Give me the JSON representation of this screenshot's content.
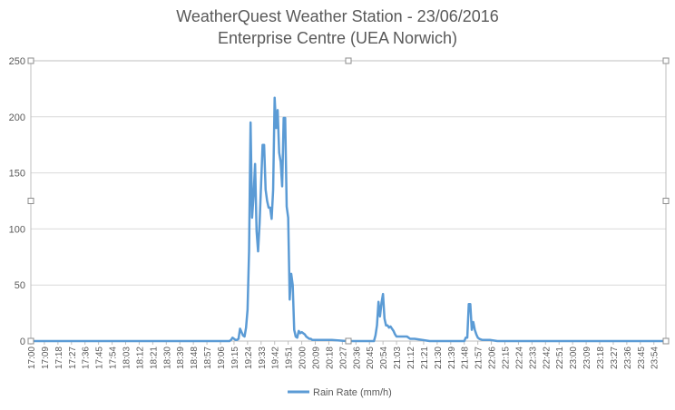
{
  "chart_data": {
    "type": "line",
    "title": "WeatherQuest Weather Station - 23/06/2016",
    "subtitle": "Enterprise Centre (UEA Norwich)",
    "xlabel": "",
    "ylabel": "",
    "ylim": [
      0,
      250
    ],
    "yticks": [
      0,
      50,
      100,
      150,
      200,
      250
    ],
    "grid": true,
    "legend_position": "bottom",
    "x_tick_labels": [
      "17:00",
      "17:09",
      "17:18",
      "17:27",
      "17:36",
      "17:45",
      "17:54",
      "18:03",
      "18:12",
      "18:21",
      "18:30",
      "18:39",
      "18:48",
      "18:57",
      "19:06",
      "19:15",
      "19:24",
      "19:33",
      "19:42",
      "19:51",
      "20:00",
      "20:09",
      "20:18",
      "20:27",
      "20:36",
      "20:45",
      "20:54",
      "21:03",
      "21:12",
      "21:21",
      "21:30",
      "21:39",
      "21:48",
      "21:57",
      "22:06",
      "22:15",
      "22:24",
      "22:33",
      "22:42",
      "22:51",
      "23:00",
      "23:09",
      "23:18",
      "23:27",
      "23:36",
      "23:45",
      "23:54"
    ],
    "x_range_minutes": [
      0,
      422
    ],
    "series": [
      {
        "name": "Rain Rate (mm/h)",
        "color": "#5b9bd5",
        "points": [
          [
            0,
            0
          ],
          [
            132,
            0
          ],
          [
            133,
            1
          ],
          [
            134,
            3
          ],
          [
            135,
            2
          ],
          [
            136,
            1
          ],
          [
            137,
            1
          ],
          [
            138,
            2
          ],
          [
            139,
            11
          ],
          [
            140,
            8
          ],
          [
            141,
            5
          ],
          [
            142,
            4
          ],
          [
            143,
            12
          ],
          [
            144,
            28
          ],
          [
            145,
            80
          ],
          [
            146,
            195
          ],
          [
            147,
            110
          ],
          [
            148,
            130
          ],
          [
            149,
            158
          ],
          [
            150,
            98
          ],
          [
            151,
            80
          ],
          [
            152,
            105
          ],
          [
            153,
            140
          ],
          [
            154,
            175
          ],
          [
            155,
            175
          ],
          [
            156,
            135
          ],
          [
            157,
            125
          ],
          [
            158,
            119
          ],
          [
            159,
            119
          ],
          [
            160,
            109
          ],
          [
            161,
            135
          ],
          [
            162,
            217
          ],
          [
            163,
            190
          ],
          [
            164,
            206
          ],
          [
            165,
            168
          ],
          [
            166,
            160
          ],
          [
            167,
            138
          ],
          [
            168,
            199
          ],
          [
            169,
            199
          ],
          [
            170,
            120
          ],
          [
            171,
            110
          ],
          [
            172,
            37
          ],
          [
            173,
            60
          ],
          [
            174,
            50
          ],
          [
            175,
            10
          ],
          [
            176,
            4
          ],
          [
            177,
            3
          ],
          [
            178,
            9
          ],
          [
            179,
            7
          ],
          [
            180,
            8
          ],
          [
            181,
            7
          ],
          [
            182,
            6
          ],
          [
            183,
            4
          ],
          [
            184,
            3
          ],
          [
            185,
            2
          ],
          [
            186,
            2
          ],
          [
            187,
            1
          ],
          [
            190,
            1
          ],
          [
            195,
            1
          ],
          [
            200,
            1
          ],
          [
            210,
            0
          ],
          [
            220,
            0
          ],
          [
            228,
            0
          ],
          [
            229,
            5
          ],
          [
            230,
            14
          ],
          [
            231,
            35
          ],
          [
            232,
            22
          ],
          [
            233,
            34
          ],
          [
            234,
            42
          ],
          [
            235,
            20
          ],
          [
            236,
            14
          ],
          [
            237,
            14
          ],
          [
            238,
            12
          ],
          [
            239,
            13
          ],
          [
            240,
            11
          ],
          [
            241,
            9
          ],
          [
            242,
            6
          ],
          [
            243,
            4
          ],
          [
            245,
            4
          ],
          [
            250,
            4
          ],
          [
            252,
            2
          ],
          [
            255,
            2
          ],
          [
            260,
            1
          ],
          [
            265,
            0
          ],
          [
            280,
            0
          ],
          [
            288,
            0
          ],
          [
            289,
            3
          ],
          [
            290,
            3
          ],
          [
            291,
            33
          ],
          [
            292,
            33
          ],
          [
            293,
            10
          ],
          [
            294,
            17
          ],
          [
            295,
            10
          ],
          [
            296,
            6
          ],
          [
            297,
            3
          ],
          [
            298,
            2
          ],
          [
            300,
            1
          ],
          [
            305,
            1
          ],
          [
            310,
            0
          ],
          [
            422,
            0
          ]
        ]
      }
    ]
  }
}
